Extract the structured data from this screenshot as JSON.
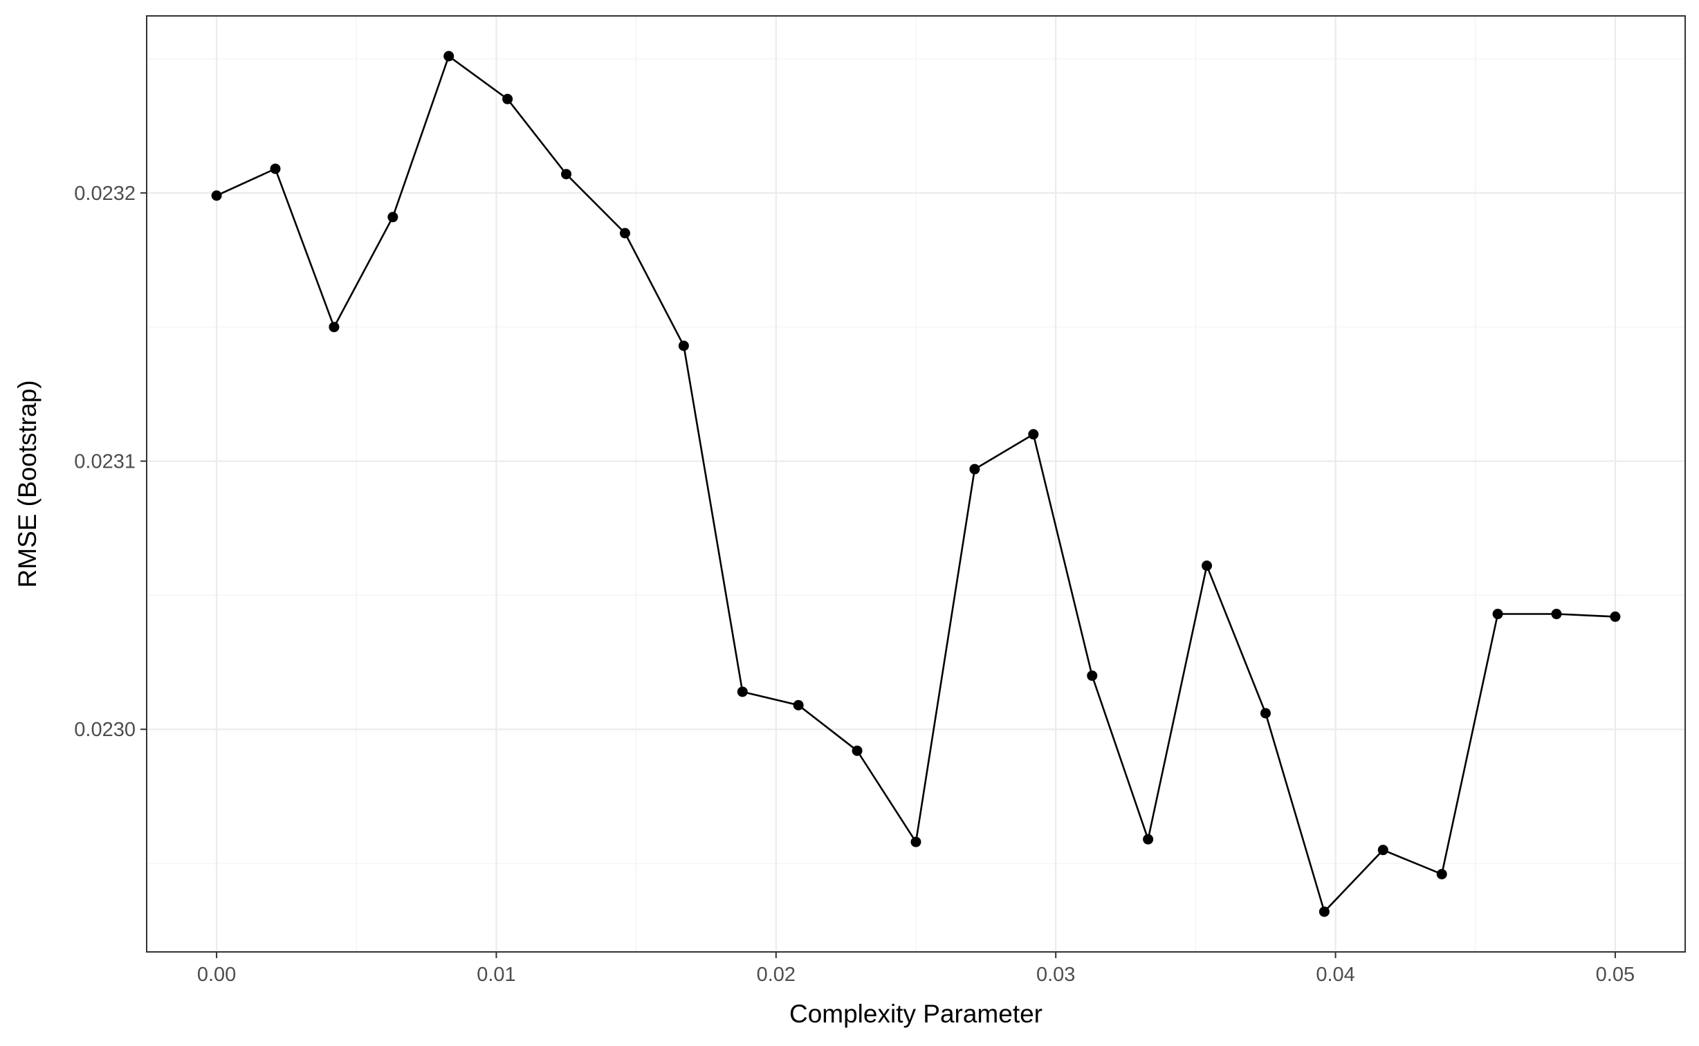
{
  "chart_data": {
    "type": "line",
    "xlabel": "Complexity Parameter",
    "ylabel": "RMSE (Bootstrap)",
    "title": "",
    "xlim": [
      -0.0025,
      0.0525
    ],
    "ylim": [
      0.022917,
      0.023266
    ],
    "x_ticks": [
      0.0,
      0.01,
      0.02,
      0.03,
      0.04,
      0.05
    ],
    "x_tick_labels": [
      "0.00",
      "0.01",
      "0.02",
      "0.03",
      "0.04",
      "0.05"
    ],
    "y_ticks": [
      0.023,
      0.0231,
      0.0232
    ],
    "y_tick_labels": [
      "0.0230",
      "0.0231",
      "0.0232"
    ],
    "grid": true,
    "legend": "none",
    "series": [
      {
        "color": "#000000",
        "x": [
          0.0,
          0.0021,
          0.0042,
          0.0063,
          0.0083,
          0.0104,
          0.0125,
          0.0146,
          0.0167,
          0.0188,
          0.0208,
          0.0229,
          0.025,
          0.0271,
          0.0292,
          0.0313,
          0.0333,
          0.0354,
          0.0375,
          0.0396,
          0.0417,
          0.0438,
          0.0458,
          0.0479,
          0.05
        ],
        "values": [
          0.023199,
          0.023209,
          0.02315,
          0.023191,
          0.023251,
          0.023235,
          0.023207,
          0.023185,
          0.023143,
          0.023014,
          0.023009,
          0.022992,
          0.022958,
          0.023097,
          0.02311,
          0.02302,
          0.022959,
          0.023061,
          0.023006,
          0.022932,
          0.022955,
          0.022946,
          0.023043,
          0.023043,
          0.023042
        ]
      }
    ]
  }
}
